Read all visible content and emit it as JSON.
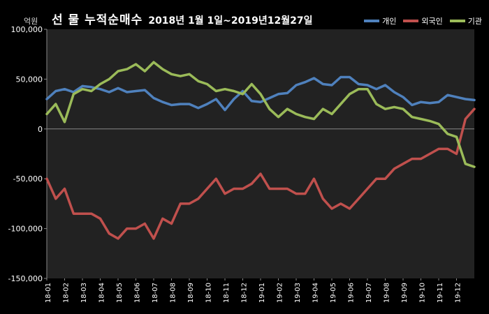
{
  "header": {
    "title_main": "선 물 누적순매수",
    "title_period": "2018년 1월 1일~2019년12월27일",
    "unit": "억원"
  },
  "legend": [
    {
      "name": "개인",
      "color": "#4f81bd"
    },
    {
      "name": "외국인",
      "color": "#c0504d"
    },
    {
      "name": "기관",
      "color": "#9bbb59"
    }
  ],
  "chart_data": {
    "type": "line",
    "ylim": [
      -150000,
      100000
    ],
    "yticks": [
      100000,
      50000,
      0,
      -50000,
      -100000,
      -150000
    ],
    "ytick_labels": [
      "100,000",
      "50,000",
      "0",
      "-50,000",
      "-100,000",
      "-150,000"
    ],
    "categories": [
      "18-01",
      "18-02",
      "18-03",
      "18-04",
      "18-05",
      "18-06",
      "18-07",
      "18-08",
      "18-09",
      "18-10",
      "18-11",
      "18-12",
      "19-01",
      "19-02",
      "19-03",
      "19-04",
      "19-05",
      "19-06",
      "19-07",
      "19-08",
      "19-09",
      "19-10",
      "19-11",
      "19-12"
    ],
    "legend_position": "top-right",
    "grid": false,
    "series": [
      {
        "name": "개인",
        "color": "#4f81bd",
        "x": [
          0,
          0.5,
          1,
          1.5,
          2,
          2.5,
          3,
          3.5,
          4,
          4.5,
          5,
          5.5,
          6,
          6.5,
          7,
          7.5,
          8,
          8.5,
          9,
          9.5,
          10,
          10.5,
          11,
          11.5,
          12,
          12.5,
          13,
          13.5,
          14,
          14.5,
          15,
          15.5,
          16,
          16.5,
          17,
          17.5,
          18,
          18.5,
          19,
          19.5,
          20,
          20.5,
          21,
          21.5,
          22,
          22.5,
          23,
          23.5,
          24
        ],
        "values": [
          30000,
          38000,
          40000,
          37000,
          43000,
          42000,
          40000,
          37000,
          41000,
          37000,
          38000,
          39000,
          31000,
          27000,
          24000,
          25000,
          25000,
          21000,
          25000,
          30000,
          19000,
          30000,
          38000,
          28000,
          27000,
          31000,
          35000,
          36000,
          44000,
          47000,
          51000,
          45000,
          44000,
          52000,
          52000,
          45000,
          44000,
          40000,
          44000,
          37000,
          32000,
          24000,
          27000,
          26000,
          27000,
          34000,
          32000,
          30000,
          29000
        ]
      },
      {
        "name": "외국인",
        "color": "#c0504d",
        "x": [
          0,
          0.5,
          1,
          1.5,
          2,
          2.5,
          3,
          3.5,
          4,
          4.5,
          5,
          5.5,
          6,
          6.5,
          7,
          7.5,
          8,
          8.5,
          9,
          9.5,
          10,
          10.5,
          11,
          11.5,
          12,
          12.5,
          13,
          13.5,
          14,
          14.5,
          15,
          15.5,
          16,
          16.5,
          17,
          17.5,
          18,
          18.5,
          19,
          19.5,
          20,
          20.5,
          21,
          21.5,
          22,
          22.5,
          23,
          23.5,
          24
        ],
        "values": [
          -50000,
          -70000,
          -60000,
          -85000,
          -85000,
          -85000,
          -90000,
          -105000,
          -110000,
          -100000,
          -100000,
          -95000,
          -110000,
          -90000,
          -95000,
          -75000,
          -75000,
          -70000,
          -60000,
          -50000,
          -65000,
          -60000,
          -60000,
          -55000,
          -45000,
          -60000,
          -60000,
          -60000,
          -65000,
          -65000,
          -50000,
          -70000,
          -80000,
          -75000,
          -80000,
          -70000,
          -60000,
          -50000,
          -50000,
          -40000,
          -35000,
          -30000,
          -30000,
          -25000,
          -20000,
          -20000,
          -25000,
          10000,
          20000
        ]
      },
      {
        "name": "기관",
        "color": "#9bbb59",
        "x": [
          0,
          0.5,
          1,
          1.5,
          2,
          2.5,
          3,
          3.5,
          4,
          4.5,
          5,
          5.5,
          6,
          6.5,
          7,
          7.5,
          8,
          8.5,
          9,
          9.5,
          10,
          10.5,
          11,
          11.5,
          12,
          12.5,
          13,
          13.5,
          14,
          14.5,
          15,
          15.5,
          16,
          16.5,
          17,
          17.5,
          18,
          18.5,
          19,
          19.5,
          20,
          20.5,
          21,
          21.5,
          22,
          22.5,
          23,
          23.5,
          24
        ],
        "values": [
          15000,
          25000,
          7000,
          35000,
          40000,
          38000,
          45000,
          50000,
          58000,
          60000,
          65000,
          58000,
          67000,
          60000,
          55000,
          53000,
          55000,
          48000,
          45000,
          38000,
          40000,
          38000,
          35000,
          45000,
          35000,
          20000,
          12000,
          20000,
          15000,
          12000,
          10000,
          20000,
          15000,
          25000,
          35000,
          40000,
          40000,
          25000,
          20000,
          22000,
          20000,
          12000,
          10000,
          8000,
          5000,
          -5000,
          -8000,
          -35000,
          -38000
        ]
      }
    ]
  }
}
